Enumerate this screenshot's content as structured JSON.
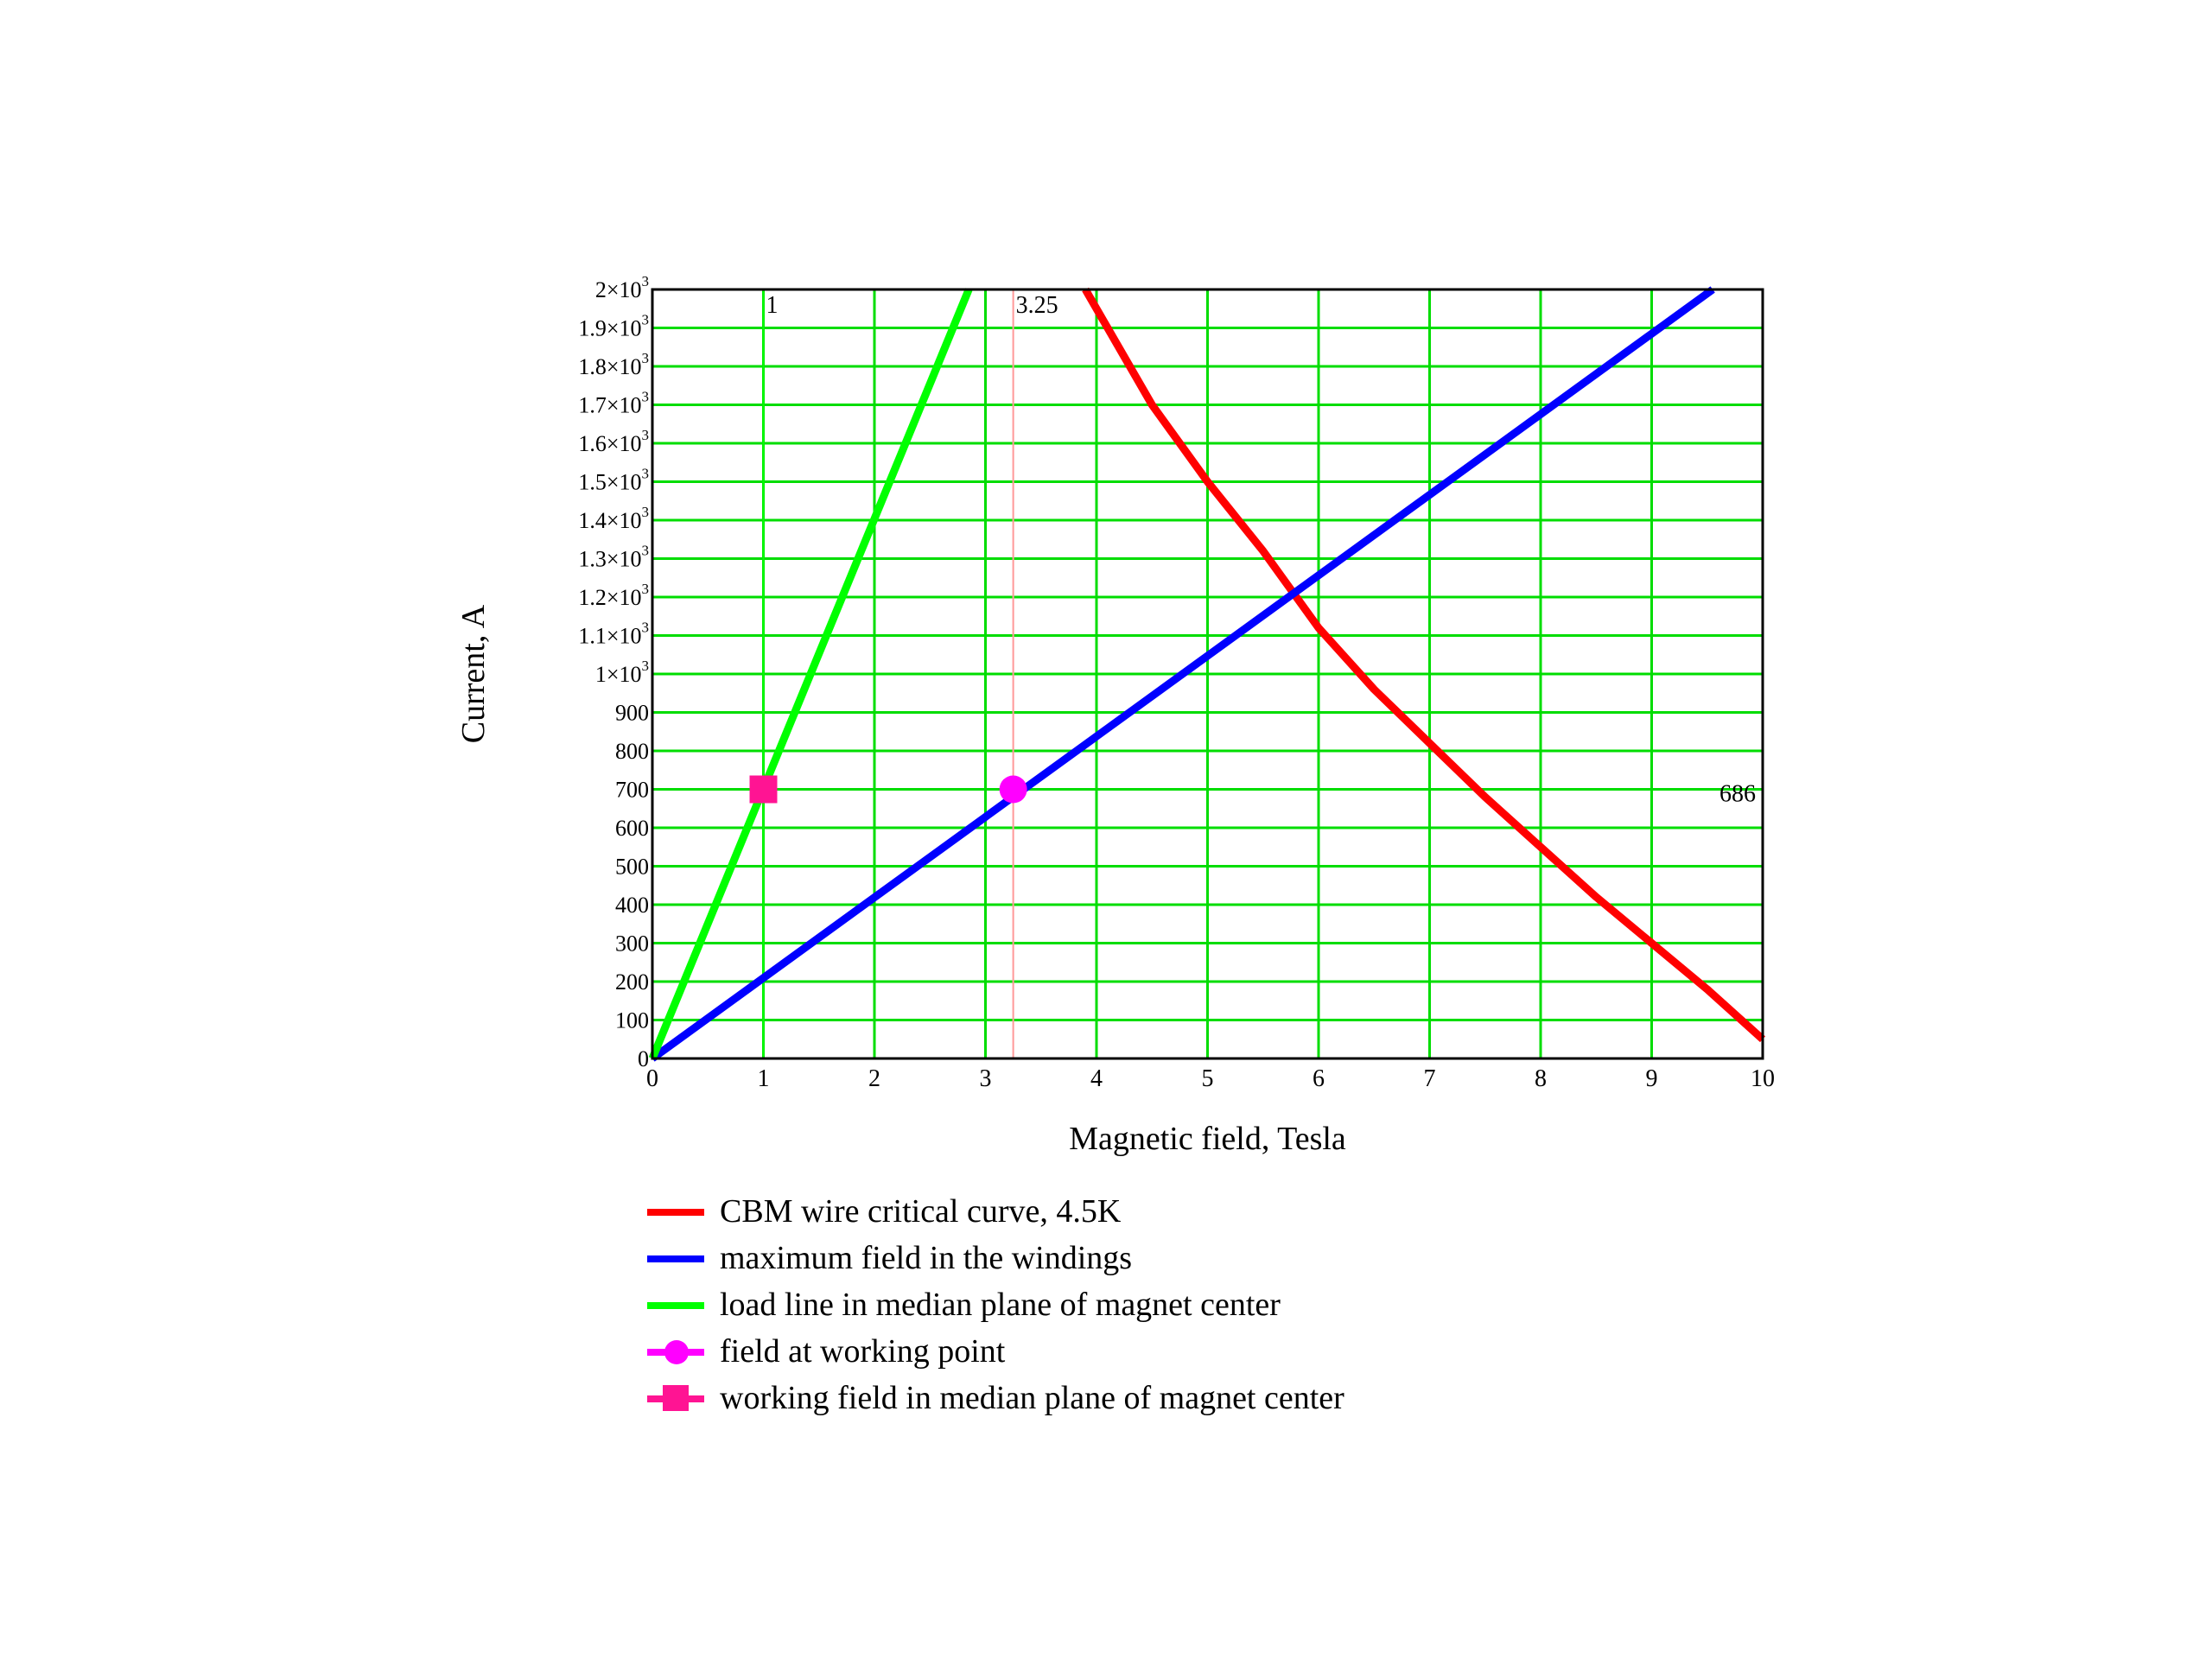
{
  "chart_data": {
    "type": "line",
    "xlabel": "Magnetic field, Tesla",
    "ylabel": "Current, A",
    "xlim": [
      0,
      10
    ],
    "ylim": [
      0,
      2000
    ],
    "grid": true,
    "legend_position": "bottom",
    "x_ticks": [
      "0",
      "1",
      "2",
      "3",
      "4",
      "5",
      "6",
      "7",
      "8",
      "9",
      "10"
    ],
    "y_ticks": [
      {
        "base": "0",
        "exp": ""
      },
      {
        "base": "100",
        "exp": ""
      },
      {
        "base": "200",
        "exp": ""
      },
      {
        "base": "300",
        "exp": ""
      },
      {
        "base": "400",
        "exp": ""
      },
      {
        "base": "500",
        "exp": ""
      },
      {
        "base": "600",
        "exp": ""
      },
      {
        "base": "700",
        "exp": ""
      },
      {
        "base": "800",
        "exp": ""
      },
      {
        "base": "900",
        "exp": ""
      },
      {
        "base": "1×10",
        "exp": "3"
      },
      {
        "base": "1.1×10",
        "exp": "3"
      },
      {
        "base": "1.2×10",
        "exp": "3"
      },
      {
        "base": "1.3×10",
        "exp": "3"
      },
      {
        "base": "1.4×10",
        "exp": "3"
      },
      {
        "base": "1.5×10",
        "exp": "3"
      },
      {
        "base": "1.6×10",
        "exp": "3"
      },
      {
        "base": "1.7×10",
        "exp": "3"
      },
      {
        "base": "1.8×10",
        "exp": "3"
      },
      {
        "base": "1.9×10",
        "exp": "3"
      },
      {
        "base": "2×10",
        "exp": "3"
      }
    ],
    "series": [
      {
        "name": "CBM wire critical curve, 4.5K",
        "color": "#ff0000",
        "style": "line",
        "x": [
          3.9,
          4.5,
          5.0,
          5.5,
          5.75,
          6.0,
          6.5,
          7.0,
          7.5,
          8.0,
          8.5,
          9.0,
          9.5,
          10.0
        ],
        "y": [
          2000,
          1700,
          1500,
          1320,
          1220,
          1120,
          960,
          820,
          680,
          550,
          420,
          300,
          180,
          50
        ]
      },
      {
        "name": "maximum field in the windings",
        "color": "#0000ff",
        "style": "line",
        "x": [
          0,
          9.55
        ],
        "y": [
          0,
          2000
        ]
      },
      {
        "name": "load line in median plane of magnet center",
        "color": "#00ff00",
        "style": "line",
        "x": [
          0,
          2.85
        ],
        "y": [
          0,
          2000
        ]
      },
      {
        "name": "field at working point",
        "color": "#ff00ff",
        "style": "circle",
        "x": [
          3.25
        ],
        "y": [
          700
        ]
      },
      {
        "name": "working field in median plane of magnet center",
        "color": "#ff1493",
        "style": "square",
        "x": [
          1.0
        ],
        "y": [
          700
        ]
      }
    ],
    "markers": [
      {
        "x": 1,
        "label": "1",
        "color": "#00ff00"
      },
      {
        "x": 3.25,
        "label": "3.25",
        "color": "#ff9999"
      }
    ],
    "annotations": [
      {
        "label": "686"
      }
    ]
  }
}
